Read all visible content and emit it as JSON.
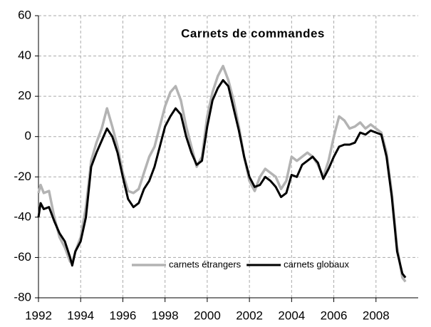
{
  "chart_data": {
    "type": "line",
    "title": "Carnets de commandes",
    "x": [
      1992,
      1992.1,
      1992.25,
      1992.5,
      1992.75,
      1993,
      1993.25,
      1993.5,
      1993.6,
      1993.75,
      1994,
      1994.25,
      1994.5,
      1994.75,
      1995,
      1995.25,
      1995.5,
      1995.75,
      1996,
      1996.25,
      1996.5,
      1996.75,
      1997,
      1997.25,
      1997.5,
      1997.75,
      1998,
      1998.25,
      1998.5,
      1998.75,
      1999,
      1999.25,
      1999.5,
      1999.75,
      2000,
      2000.25,
      2000.5,
      2000.75,
      2001,
      2001.25,
      2001.5,
      2001.75,
      2002,
      2002.25,
      2002.5,
      2002.75,
      2003,
      2003.25,
      2003.5,
      2003.75,
      2004,
      2004.25,
      2004.5,
      2004.75,
      2005,
      2005.25,
      2005.5,
      2005.75,
      2006,
      2006.25,
      2006.5,
      2006.75,
      2007,
      2007.25,
      2007.5,
      2007.75,
      2008,
      2008.25,
      2008.5,
      2008.75,
      2009,
      2009.25,
      2009.4
    ],
    "series": [
      {
        "name": "carnets étrangers",
        "color": "#b3b3b3",
        "width": 3.5,
        "values": [
          -28,
          -24,
          -28,
          -27,
          -40,
          -50,
          -55,
          -62,
          -63,
          -57,
          -50,
          -35,
          -12,
          -3,
          4,
          14,
          5,
          -5,
          -18,
          -27,
          -28,
          -26,
          -18,
          -10,
          -5,
          5,
          15,
          22,
          25,
          18,
          5,
          -5,
          -15,
          -10,
          10,
          22,
          30,
          35,
          28,
          18,
          5,
          -10,
          -22,
          -27,
          -20,
          -16,
          -18,
          -20,
          -26,
          -22,
          -10,
          -12,
          -10,
          -8,
          -10,
          -14,
          -20,
          -12,
          0,
          10,
          8,
          4,
          5,
          7,
          4,
          6,
          4,
          2,
          -8,
          -28,
          -55,
          -70,
          -72
        ]
      },
      {
        "name": "carnets globaux",
        "color": "#000000",
        "width": 3,
        "values": [
          -40,
          -33,
          -36,
          -35,
          -42,
          -48,
          -52,
          -60,
          -64,
          -57,
          -52,
          -40,
          -15,
          -8,
          -2,
          4,
          0,
          -8,
          -20,
          -31,
          -35,
          -33,
          -26,
          -22,
          -15,
          -5,
          5,
          10,
          14,
          11,
          0,
          -8,
          -14,
          -12,
          5,
          18,
          24,
          28,
          25,
          14,
          3,
          -10,
          -20,
          -25,
          -24,
          -20,
          -22,
          -25,
          -30,
          -28,
          -19,
          -20,
          -14,
          -12,
          -10,
          -13,
          -21,
          -16,
          -10,
          -5,
          -4,
          -4,
          -3,
          2,
          1,
          3,
          2,
          1,
          -10,
          -30,
          -57,
          -68,
          -70
        ]
      }
    ],
    "xlim": [
      1992,
      2010
    ],
    "xticks": [
      1992,
      1994,
      1996,
      1998,
      2000,
      2002,
      2004,
      2006,
      2008
    ],
    "ylim": [
      -80,
      60
    ],
    "yticks": [
      -80,
      -60,
      -40,
      -20,
      0,
      20,
      40,
      60
    ],
    "grid": true,
    "legend": "lower center"
  }
}
